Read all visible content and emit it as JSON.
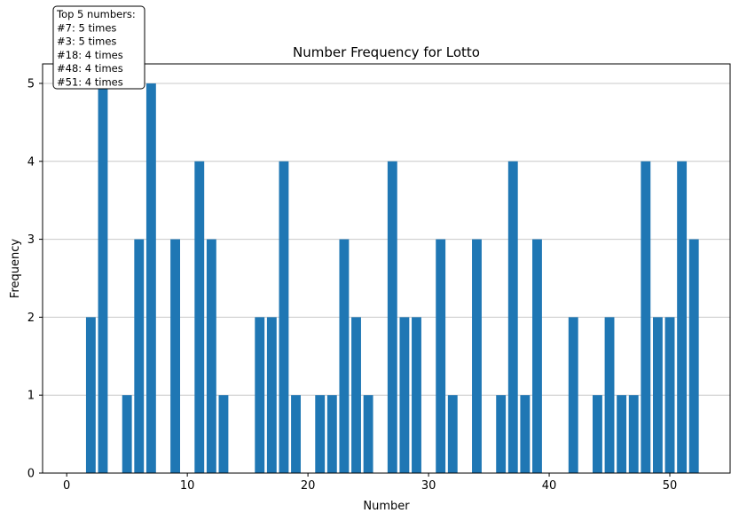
{
  "chart_data": {
    "type": "bar",
    "title": "Number Frequency for Lotto",
    "xlabel": "Number",
    "ylabel": "Frequency",
    "xlim": [
      -2,
      55
    ],
    "ylim": [
      0,
      5.25
    ],
    "x_ticks": [
      0,
      10,
      20,
      30,
      40,
      50
    ],
    "y_ticks": [
      0,
      1,
      2,
      3,
      4,
      5
    ],
    "grid": "y",
    "bar_color": "#1f77b4",
    "x": [
      2,
      3,
      5,
      6,
      7,
      9,
      11,
      12,
      13,
      16,
      17,
      18,
      19,
      21,
      22,
      23,
      24,
      25,
      27,
      28,
      29,
      31,
      32,
      34,
      36,
      37,
      38,
      39,
      42,
      44,
      45,
      46,
      47,
      48,
      49,
      50,
      51,
      52
    ],
    "values": [
      2,
      5,
      1,
      3,
      5,
      3,
      4,
      3,
      1,
      2,
      2,
      4,
      1,
      1,
      1,
      3,
      2,
      1,
      4,
      2,
      2,
      3,
      1,
      3,
      1,
      4,
      1,
      3,
      2,
      1,
      2,
      1,
      1,
      4,
      2,
      2,
      4,
      3
    ],
    "annotation": {
      "lines": [
        "Top 5 numbers:",
        "#7: 5 times",
        "#3: 5 times",
        "#18: 4 times",
        "#48: 4 times",
        "#51: 4 times"
      ],
      "placement": "top-left"
    }
  }
}
